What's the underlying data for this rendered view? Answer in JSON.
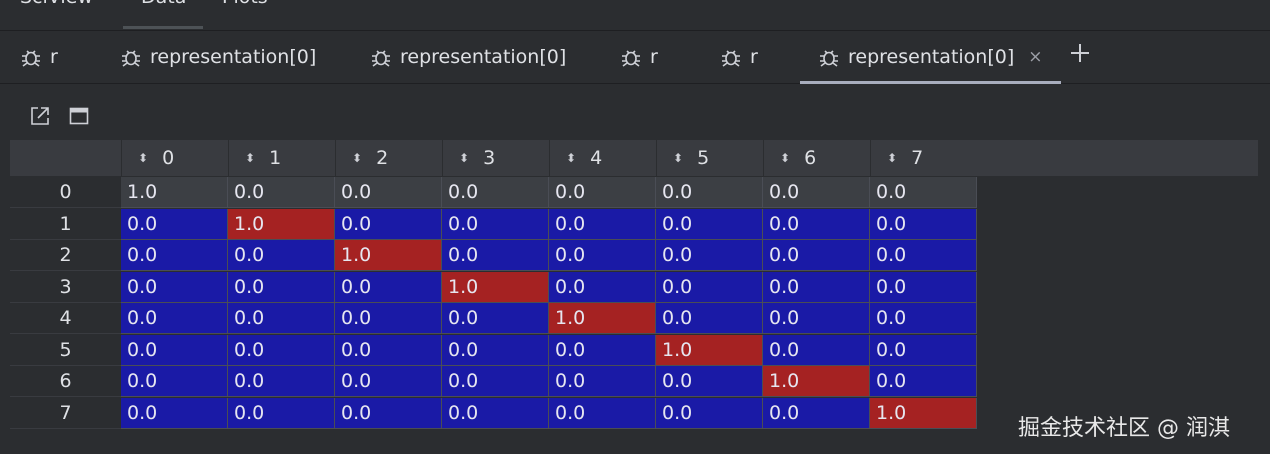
{
  "top_tabs": [
    {
      "label": "SciView"
    },
    {
      "label": "Data"
    },
    {
      "label": "Plots"
    }
  ],
  "tabs": [
    {
      "label": "r",
      "icon": "bug-icon"
    },
    {
      "label": "representation[0]",
      "icon": "bug-icon"
    },
    {
      "label": "representation[0]",
      "icon": "bug-icon"
    },
    {
      "label": "r",
      "icon": "bug-icon"
    },
    {
      "label": "r",
      "icon": "bug-icon"
    },
    {
      "label": "representation[0]",
      "icon": "bug-icon",
      "active": true,
      "close": "×"
    }
  ],
  "toolbar": {
    "icons": [
      "open-in-new-window-icon",
      "maximize-window-icon"
    ]
  },
  "table": {
    "columns": [
      "0",
      "1",
      "2",
      "3",
      "4",
      "5",
      "6",
      "7"
    ],
    "row_index": [
      "0",
      "1",
      "2",
      "3",
      "4",
      "5",
      "6",
      "7"
    ],
    "rows": [
      [
        "1.0",
        "0.0",
        "0.0",
        "0.0",
        "0.0",
        "0.0",
        "0.0",
        "0.0"
      ],
      [
        "0.0",
        "1.0",
        "0.0",
        "0.0",
        "0.0",
        "0.0",
        "0.0",
        "0.0"
      ],
      [
        "0.0",
        "0.0",
        "1.0",
        "0.0",
        "0.0",
        "0.0",
        "0.0",
        "0.0"
      ],
      [
        "0.0",
        "0.0",
        "0.0",
        "1.0",
        "0.0",
        "0.0",
        "0.0",
        "0.0"
      ],
      [
        "0.0",
        "0.0",
        "0.0",
        "0.0",
        "1.0",
        "0.0",
        "0.0",
        "0.0"
      ],
      [
        "0.0",
        "0.0",
        "0.0",
        "0.0",
        "0.0",
        "1.0",
        "0.0",
        "0.0"
      ],
      [
        "0.0",
        "0.0",
        "0.0",
        "0.0",
        "0.0",
        "0.0",
        "1.0",
        "0.0"
      ],
      [
        "0.0",
        "0.0",
        "0.0",
        "0.0",
        "0.0",
        "0.0",
        "0.0",
        "1.0"
      ]
    ],
    "colors": {
      "low": "#1a1aa6",
      "high": "#a52222",
      "first_row_bg": "#3c3f44"
    }
  },
  "watermark": "掘金技术社区 @ 润淇"
}
